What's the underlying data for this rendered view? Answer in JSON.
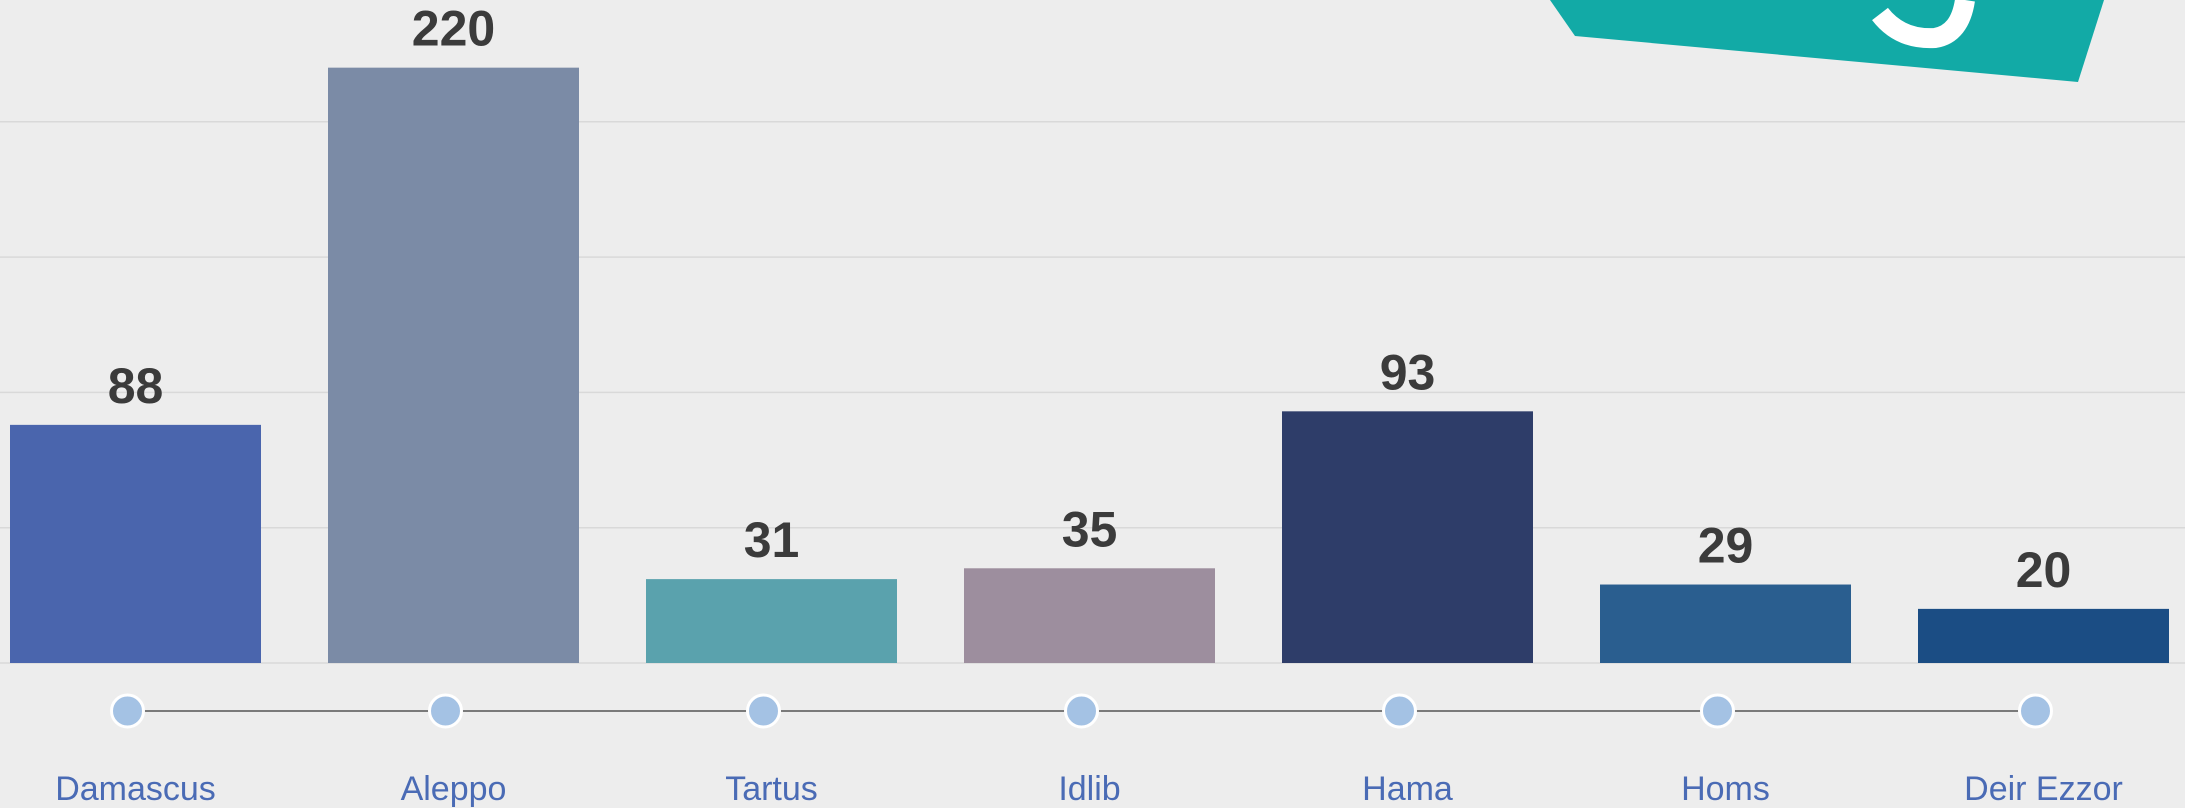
{
  "chart_data": {
    "type": "bar",
    "categories": [
      "Damascus",
      "Aleppo",
      "Tartus",
      "Idlib",
      "Hama",
      "Homs",
      "Deir Ezzor"
    ],
    "values": [
      88,
      220,
      31,
      35,
      93,
      29,
      20
    ],
    "colors": [
      "#4a65ad",
      "#7b8ba6",
      "#5aa2ad",
      "#9d8e9e",
      "#2e3d69",
      "#2a5e8f",
      "#1b4d84"
    ],
    "ylim": [
      0,
      245
    ],
    "yticks": [
      0,
      50,
      100,
      150,
      200
    ],
    "grid": true
  }
}
